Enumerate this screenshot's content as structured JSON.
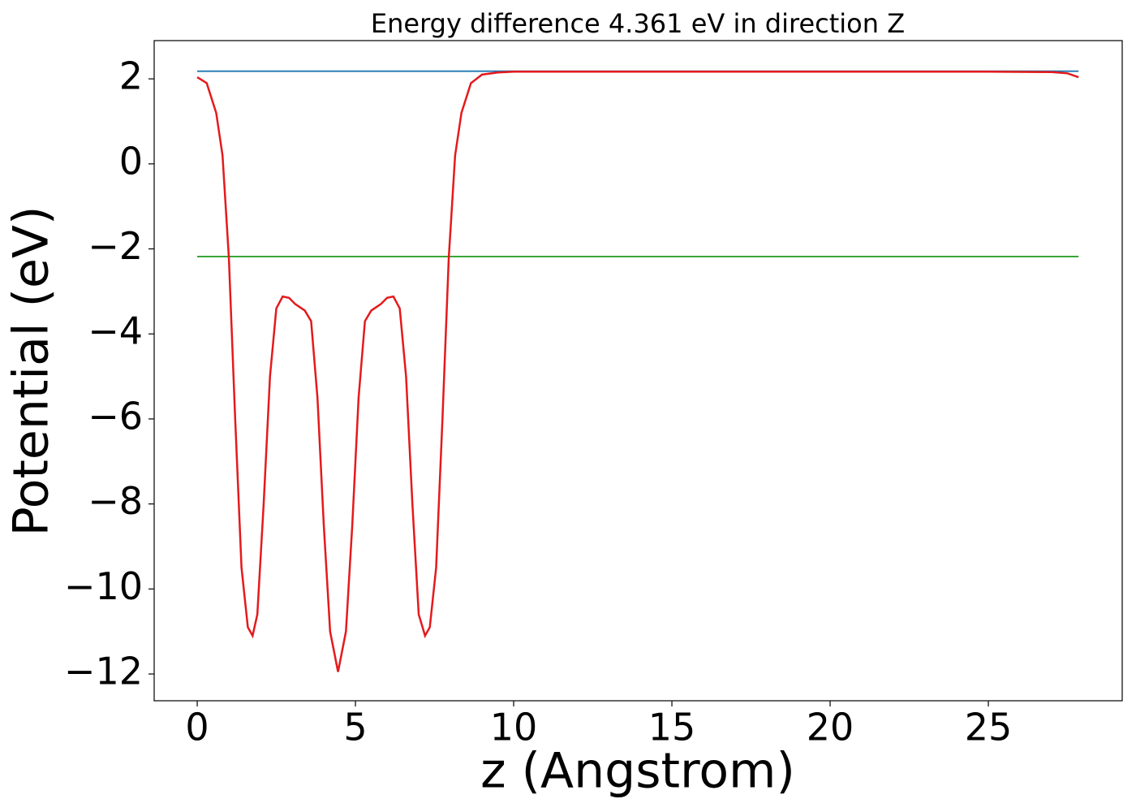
{
  "chart_data": {
    "type": "line",
    "title": "Energy difference 4.361 eV in direction Z",
    "xlabel": "z (Angstrom)",
    "ylabel": "Potential (eV)",
    "xlim": [
      -1.36,
      29.23
    ],
    "ylim": [
      -12.63,
      2.9
    ],
    "xticks": [
      0,
      5,
      10,
      15,
      20,
      25
    ],
    "yticks": [
      {
        "value": -12,
        "label": "−12"
      },
      {
        "value": -10,
        "label": "−10"
      },
      {
        "value": -8,
        "label": "−8"
      },
      {
        "value": -6,
        "label": "−6"
      },
      {
        "value": -4,
        "label": "−4"
      },
      {
        "value": -2,
        "label": "−2"
      },
      0,
      2
    ],
    "series": [
      {
        "color": "#1f77b4",
        "x": [
          0,
          27.85
        ],
        "values": [
          2.18,
          2.18
        ]
      },
      {
        "color": "#2ca02c",
        "x": [
          0,
          27.85
        ],
        "values": [
          -2.18,
          -2.18
        ]
      },
      {
        "color": "#e41a1c",
        "x": [
          0,
          0.3,
          0.6,
          0.8,
          1.0,
          1.2,
          1.4,
          1.6,
          1.75,
          1.9,
          2.1,
          2.3,
          2.5,
          2.7,
          2.9,
          3.1,
          3.4,
          3.6,
          3.8,
          4.0,
          4.2,
          4.45,
          4.7,
          4.9,
          5.1,
          5.3,
          5.5,
          5.8,
          6.0,
          6.2,
          6.4,
          6.6,
          6.8,
          7.0,
          7.2,
          7.35,
          7.55,
          7.75,
          7.95,
          8.15,
          8.35,
          8.65,
          9.0,
          9.5,
          10,
          15,
          20,
          25,
          27,
          27.5,
          27.85
        ],
        "values": [
          2.04,
          1.9,
          1.2,
          0.2,
          -2.2,
          -6,
          -9.5,
          -10.9,
          -11.1,
          -10.6,
          -8,
          -5,
          -3.4,
          -3.12,
          -3.15,
          -3.3,
          -3.45,
          -3.7,
          -5.5,
          -8.5,
          -11,
          -11.95,
          -11,
          -8.5,
          -5.5,
          -3.7,
          -3.45,
          -3.3,
          -3.15,
          -3.12,
          -3.4,
          -5,
          -8,
          -10.6,
          -11.1,
          -10.9,
          -9.5,
          -6,
          -2.2,
          0.2,
          1.2,
          1.9,
          2.1,
          2.15,
          2.17,
          2.17,
          2.17,
          2.17,
          2.16,
          2.13,
          2.04
        ]
      }
    ]
  }
}
